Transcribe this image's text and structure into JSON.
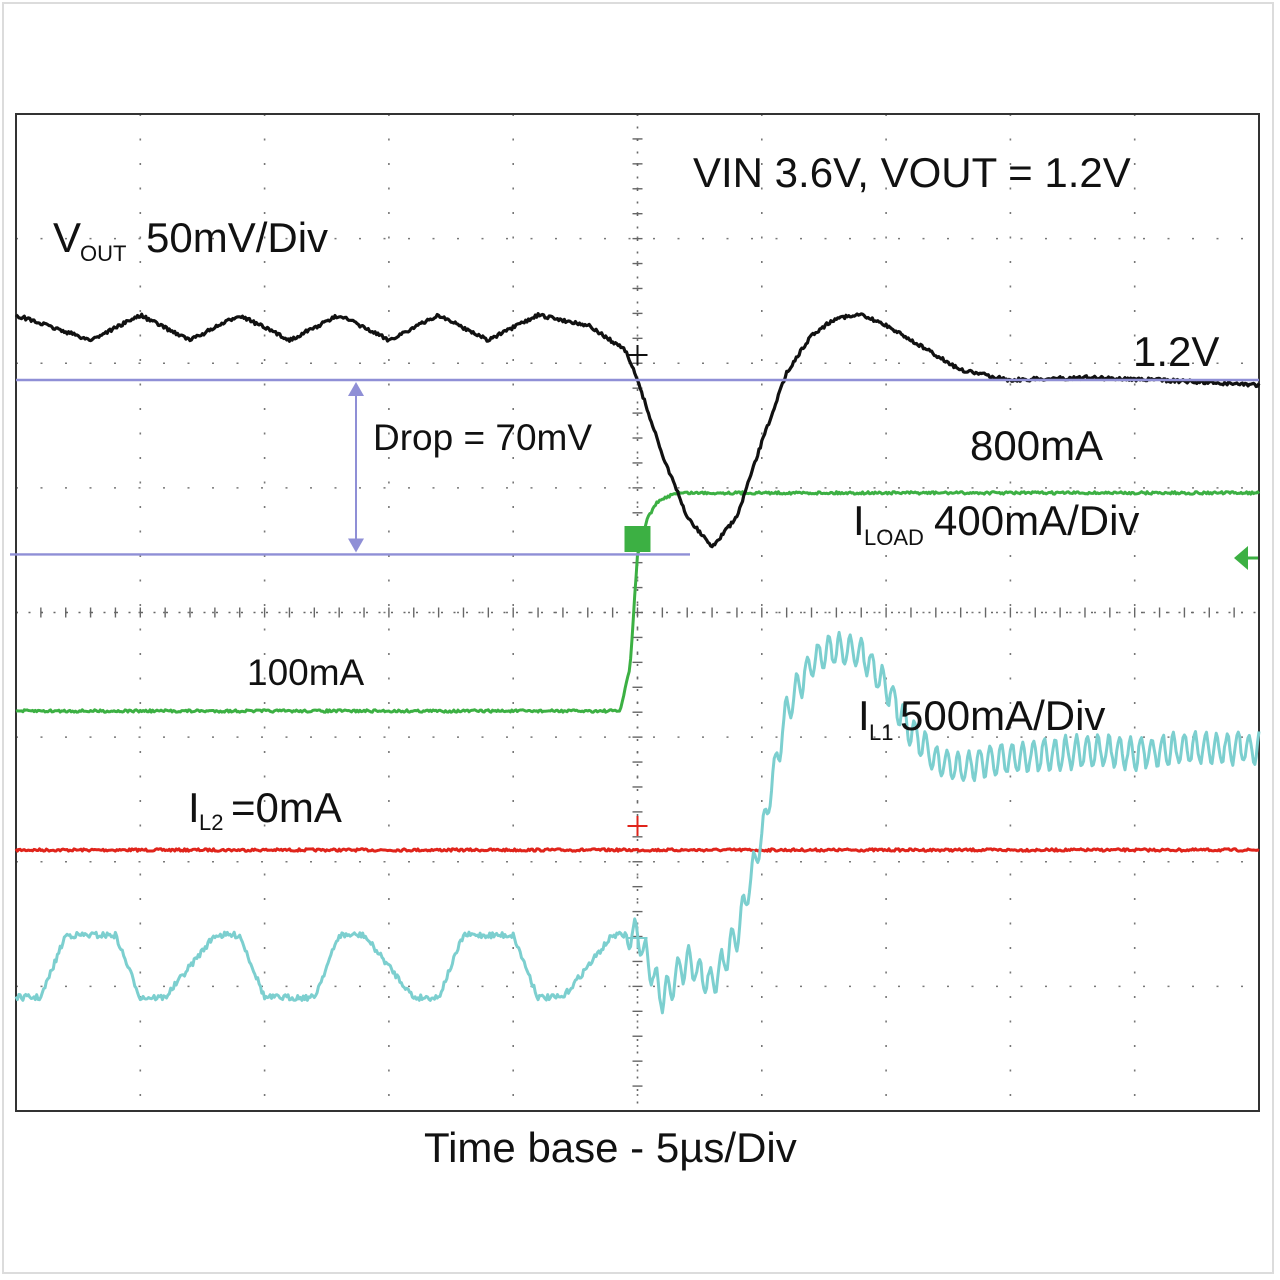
{
  "chart_data": {
    "type": "line",
    "title": "VIN 3.6V, VOUT = 1.2V",
    "xlabel": "Time base - 5µs/Div",
    "x_unit": "µs",
    "x_per_div": 5,
    "x_divisions": 10,
    "xlim": [
      -25,
      25
    ],
    "y_divisions": 8,
    "grid": true,
    "colors": {
      "vout": "#111111",
      "iload": "#3cb043",
      "il1": "#7ccfcf",
      "il2": "#e0241b",
      "marker": "#8f8fd6"
    },
    "labels": {
      "vout_main": "V",
      "vout_sub": "OUT",
      "vout_scale": "50mV/Div",
      "vout_level": "1.2V",
      "drop": "Drop = 70mV",
      "iload_high": "800mA",
      "iload_main": "I",
      "iload_sub": "LOAD",
      "iload_scale": "400mA/Div",
      "iload_low": "100mA",
      "il1_main": "I",
      "il1_sub": "L1",
      "il1_scale": "500mA/Div",
      "il2_main": "I",
      "il2_sub": "L2",
      "il2_value": "=0mA"
    },
    "series": [
      {
        "key": "vout",
        "unit": "V",
        "x": [
          -25,
          -22,
          -20,
          -18,
          -16,
          -14,
          -12,
          -10,
          -8,
          -6,
          -4,
          -2,
          -0.5,
          0,
          1,
          2,
          3,
          4,
          5,
          6,
          7,
          8,
          9,
          10,
          12,
          13,
          15,
          18,
          21,
          25
        ],
        "y": [
          1.226,
          1.216,
          1.226,
          1.216,
          1.226,
          1.216,
          1.226,
          1.216,
          1.226,
          1.216,
          1.226,
          1.222,
          1.212,
          1.2,
          1.17,
          1.145,
          1.133,
          1.145,
          1.175,
          1.203,
          1.218,
          1.225,
          1.226,
          1.222,
          1.21,
          1.204,
          1.2,
          1.201,
          1.2,
          1.198
        ]
      },
      {
        "key": "iload",
        "unit": "mA",
        "x": [
          -25,
          -0.7,
          -0.3,
          0,
          0.4,
          0.8,
          1.5,
          25
        ],
        "y": [
          100,
          100,
          240,
          600,
          720,
          770,
          800,
          800
        ]
      },
      {
        "key": "il1",
        "unit": "mA",
        "ripple_mA": 120,
        "x": [
          -25,
          -24,
          -23,
          -21,
          -20,
          -19,
          -17,
          -16,
          -15,
          -13,
          -12,
          -11,
          -9,
          -8,
          -7,
          -5,
          -4,
          -3,
          -1,
          0,
          1,
          2,
          3,
          4,
          5,
          6,
          7,
          8,
          9,
          10,
          11,
          12,
          13,
          14,
          16,
          18,
          20,
          22,
          25
        ],
        "y": [
          -50,
          -50,
          200,
          200,
          -50,
          -50,
          200,
          200,
          -50,
          -50,
          200,
          200,
          -50,
          -50,
          200,
          200,
          -50,
          -50,
          200,
          200,
          -50,
          100,
          0,
          200,
          600,
          1100,
          1300,
          1350,
          1330,
          1200,
          1020,
          900,
          870,
          900,
          920,
          940,
          930,
          950,
          950
        ]
      },
      {
        "key": "il2",
        "unit": "mA",
        "x": [
          -25,
          25
        ],
        "y": [
          0,
          0
        ]
      }
    ]
  }
}
